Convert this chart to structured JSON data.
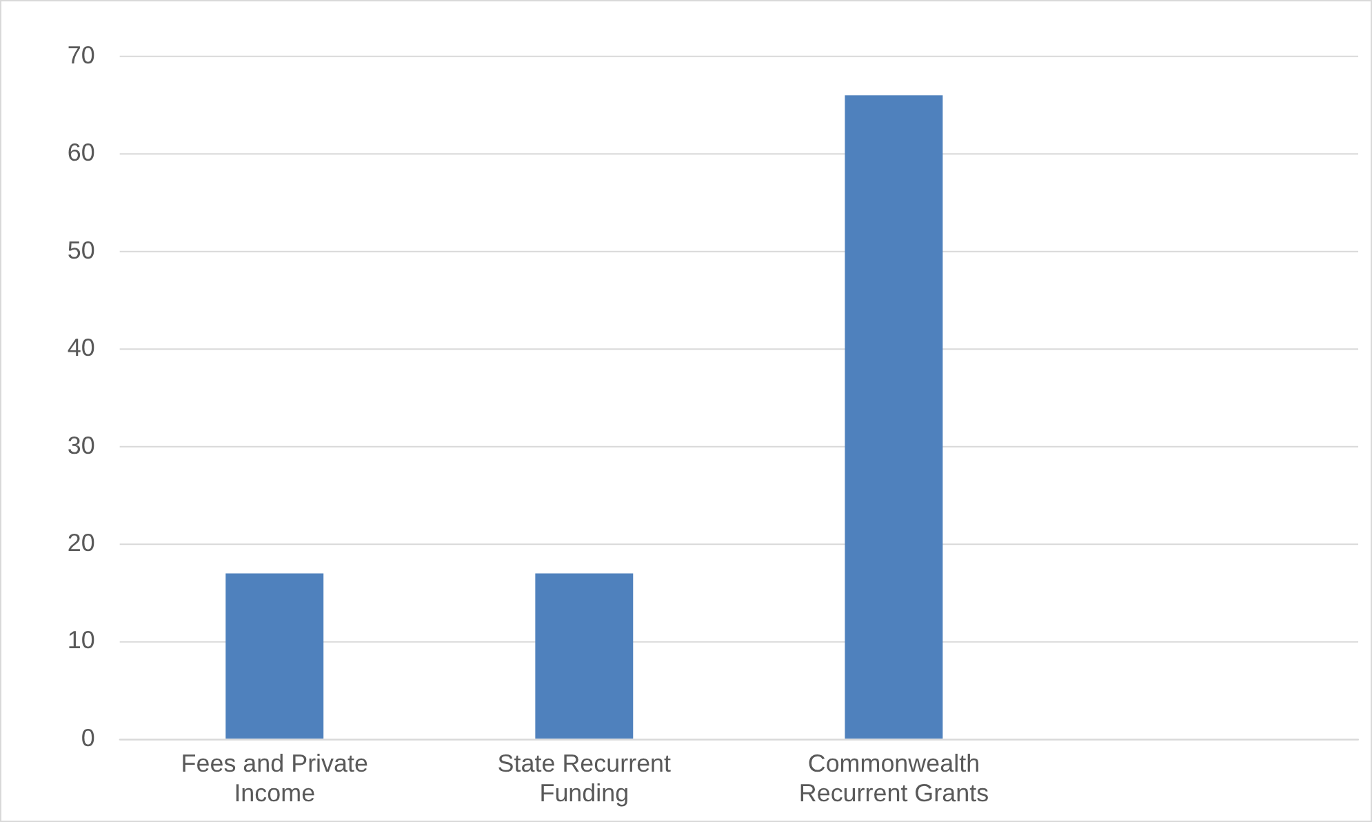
{
  "chart_data": {
    "type": "bar",
    "categories": [
      "Fees and Private Income",
      "State Recurrent Funding",
      "Commonwealth Recurrent Grants",
      null
    ],
    "values": [
      17,
      17,
      66,
      null
    ],
    "color": "#4f81bd",
    "ylim": [
      0,
      70
    ],
    "yticks": [
      0,
      10,
      20,
      30,
      40,
      50,
      60,
      70
    ],
    "grid": "y",
    "legend": false
  }
}
